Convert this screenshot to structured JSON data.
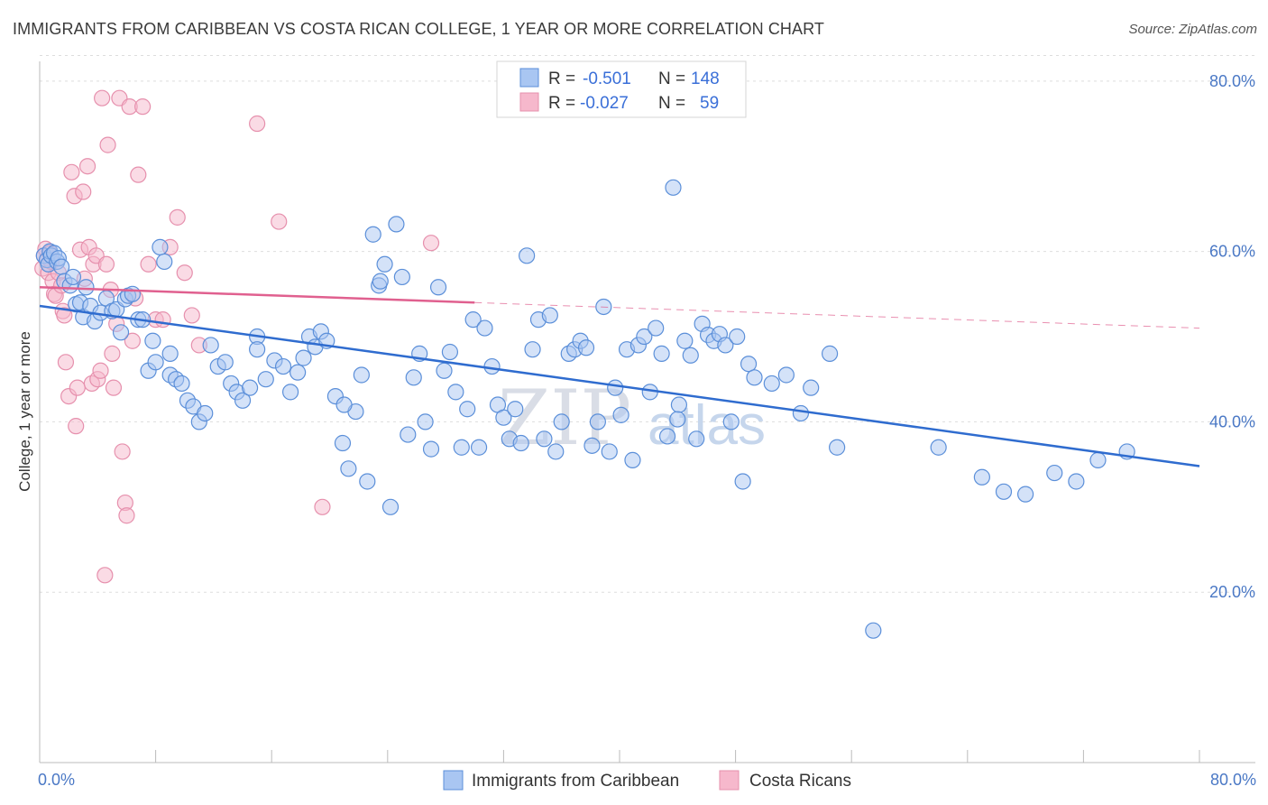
{
  "title": "IMMIGRANTS FROM CARIBBEAN VS COSTA RICAN COLLEGE, 1 YEAR OR MORE CORRELATION CHART",
  "source": "Source: ZipAtlas.com",
  "watermark": {
    "zip": "ZIP",
    "atlas": "atlas"
  },
  "legend_box": [
    {
      "r_label": "R =",
      "r_value": "-0.501",
      "n_label": "N =",
      "n_value": "148"
    },
    {
      "r_label": "R =",
      "r_value": "-0.027",
      "n_label": "N =",
      "n_value": "59"
    }
  ],
  "colors": {
    "blue_fill": "#a9c6f2",
    "blue_stroke": "#5b8fd9",
    "blue_line": "#2f6ccf",
    "pink_fill": "#f6b8cc",
    "pink_stroke": "#e690ad",
    "pink_line": "#e0608f",
    "grid": "#dddddd",
    "tick_text": "#4a78c5"
  },
  "chart_data": {
    "type": "scatter",
    "title": "IMMIGRANTS FROM CARIBBEAN VS COSTA RICAN COLLEGE, 1 YEAR OR MORE CORRELATION CHART",
    "xlabel": "",
    "ylabel": "College, 1 year or more",
    "xlim": [
      0,
      80
    ],
    "ylim": [
      0,
      83
    ],
    "x_tick_labels": [
      "0.0%",
      "80.0%"
    ],
    "y_ticks": [
      20,
      40,
      60,
      80
    ],
    "y_tick_labels": [
      "20.0%",
      "40.0%",
      "60.0%",
      "80.0%"
    ],
    "grid": true,
    "legend_position": "bottom",
    "series": [
      {
        "name": "Immigrants from Caribbean",
        "color": "#a9c6f2",
        "r": -0.501,
        "n": 148,
        "trend": {
          "x": [
            0,
            80
          ],
          "y": [
            53.6,
            34.8
          ]
        },
        "points": [
          [
            0.3,
            59.5
          ],
          [
            0.5,
            59.0
          ],
          [
            0.6,
            58.5
          ],
          [
            0.7,
            60.0
          ],
          [
            0.8,
            59.5
          ],
          [
            1.0,
            59.8
          ],
          [
            1.2,
            58.8
          ],
          [
            1.3,
            59.2
          ],
          [
            1.5,
            58.2
          ],
          [
            1.7,
            56.5
          ],
          [
            2.1,
            56.0
          ],
          [
            2.3,
            57.0
          ],
          [
            2.5,
            53.8
          ],
          [
            2.8,
            54.0
          ],
          [
            3.0,
            52.3
          ],
          [
            3.2,
            55.8
          ],
          [
            3.5,
            53.6
          ],
          [
            3.8,
            51.8
          ],
          [
            4.2,
            52.8
          ],
          [
            4.6,
            54.5
          ],
          [
            5.0,
            53.0
          ],
          [
            5.3,
            53.2
          ],
          [
            5.6,
            50.5
          ],
          [
            5.9,
            54.4
          ],
          [
            6.1,
            54.8
          ],
          [
            6.4,
            55.0
          ],
          [
            6.8,
            52.0
          ],
          [
            7.1,
            52.0
          ],
          [
            7.5,
            46.0
          ],
          [
            7.8,
            49.5
          ],
          [
            8.0,
            47.0
          ],
          [
            8.3,
            60.5
          ],
          [
            8.6,
            58.8
          ],
          [
            9.0,
            45.5
          ],
          [
            9.4,
            45.0
          ],
          [
            9.8,
            44.5
          ],
          [
            10.2,
            42.5
          ],
          [
            10.6,
            41.8
          ],
          [
            11.0,
            40.0
          ],
          [
            11.4,
            41.0
          ],
          [
            11.8,
            49.0
          ],
          [
            12.3,
            46.5
          ],
          [
            12.8,
            47.0
          ],
          [
            13.2,
            44.5
          ],
          [
            13.6,
            43.5
          ],
          [
            14.0,
            42.5
          ],
          [
            14.5,
            44.0
          ],
          [
            15.0,
            50.0
          ],
          [
            15.6,
            45.0
          ],
          [
            16.2,
            47.2
          ],
          [
            16.8,
            46.5
          ],
          [
            17.3,
            43.5
          ],
          [
            17.8,
            45.8
          ],
          [
            18.2,
            47.5
          ],
          [
            18.6,
            50.0
          ],
          [
            19.0,
            48.8
          ],
          [
            19.4,
            50.6
          ],
          [
            19.8,
            49.5
          ],
          [
            20.4,
            43.0
          ],
          [
            20.9,
            37.5
          ],
          [
            21.3,
            34.5
          ],
          [
            21.8,
            41.2
          ],
          [
            22.2,
            45.5
          ],
          [
            22.6,
            33.0
          ],
          [
            23.0,
            62.0
          ],
          [
            23.4,
            56.0
          ],
          [
            23.8,
            58.5
          ],
          [
            24.2,
            30.0
          ],
          [
            24.6,
            63.2
          ],
          [
            25.0,
            57.0
          ],
          [
            25.4,
            38.5
          ],
          [
            25.8,
            45.2
          ],
          [
            26.2,
            48.0
          ],
          [
            26.6,
            40.0
          ],
          [
            27.0,
            36.8
          ],
          [
            27.5,
            55.8
          ],
          [
            27.9,
            46.0
          ],
          [
            28.3,
            48.2
          ],
          [
            28.7,
            43.5
          ],
          [
            29.1,
            37.0
          ],
          [
            29.5,
            41.5
          ],
          [
            29.9,
            52.0
          ],
          [
            30.3,
            37.0
          ],
          [
            30.7,
            51.0
          ],
          [
            31.2,
            46.5
          ],
          [
            31.6,
            42.0
          ],
          [
            32.0,
            40.5
          ],
          [
            32.4,
            38.0
          ],
          [
            32.8,
            41.5
          ],
          [
            33.2,
            37.5
          ],
          [
            33.6,
            59.5
          ],
          [
            34.0,
            48.5
          ],
          [
            34.4,
            52.0
          ],
          [
            34.8,
            38.0
          ],
          [
            35.2,
            52.5
          ],
          [
            35.6,
            36.5
          ],
          [
            36.0,
            40.0
          ],
          [
            36.5,
            48.0
          ],
          [
            36.9,
            48.5
          ],
          [
            37.3,
            49.5
          ],
          [
            37.7,
            48.7
          ],
          [
            38.1,
            37.2
          ],
          [
            38.5,
            40.0
          ],
          [
            38.9,
            53.5
          ],
          [
            39.3,
            36.5
          ],
          [
            39.7,
            44.0
          ],
          [
            40.1,
            40.8
          ],
          [
            40.5,
            48.5
          ],
          [
            40.9,
            35.5
          ],
          [
            41.3,
            49.0
          ],
          [
            41.7,
            50.0
          ],
          [
            42.1,
            43.5
          ],
          [
            42.5,
            51.0
          ],
          [
            42.9,
            48.0
          ],
          [
            43.3,
            38.3
          ],
          [
            43.7,
            67.5
          ],
          [
            44.1,
            42.0
          ],
          [
            44.5,
            49.5
          ],
          [
            44.9,
            47.8
          ],
          [
            45.3,
            38.0
          ],
          [
            45.7,
            51.5
          ],
          [
            46.1,
            50.2
          ],
          [
            46.5,
            49.5
          ],
          [
            46.9,
            50.3
          ],
          [
            47.3,
            49.0
          ],
          [
            47.7,
            40.0
          ],
          [
            48.1,
            50.0
          ],
          [
            48.5,
            33.0
          ],
          [
            48.9,
            46.8
          ],
          [
            49.3,
            45.2
          ],
          [
            50.5,
            44.5
          ],
          [
            51.5,
            45.5
          ],
          [
            52.5,
            41.0
          ],
          [
            53.2,
            44.0
          ],
          [
            54.5,
            48.0
          ],
          [
            55.0,
            37.0
          ],
          [
            57.5,
            15.5
          ],
          [
            62.0,
            37.0
          ],
          [
            65.0,
            33.5
          ],
          [
            66.5,
            31.8
          ],
          [
            68.0,
            31.5
          ],
          [
            70.0,
            34.0
          ],
          [
            71.5,
            33.0
          ],
          [
            73.0,
            35.5
          ],
          [
            75.0,
            36.5
          ],
          [
            44.0,
            40.3
          ],
          [
            23.5,
            56.5
          ],
          [
            9.0,
            48.0
          ],
          [
            15.0,
            48.5
          ],
          [
            21.0,
            42.0
          ]
        ]
      },
      {
        "name": "Costa Ricans",
        "color": "#f6b8cc",
        "r": -0.027,
        "n": 59,
        "trend": {
          "x": [
            0,
            30
          ],
          "y": [
            55.8,
            54.0
          ]
        },
        "points": [
          [
            0.2,
            58.0
          ],
          [
            0.3,
            59.5
          ],
          [
            0.4,
            60.3
          ],
          [
            0.5,
            59.0
          ],
          [
            0.6,
            57.5
          ],
          [
            0.7,
            59.8
          ],
          [
            0.8,
            58.8
          ],
          [
            0.9,
            56.5
          ],
          [
            1.0,
            55.0
          ],
          [
            1.1,
            54.8
          ],
          [
            1.3,
            57.5
          ],
          [
            1.5,
            56.0
          ],
          [
            1.6,
            53.0
          ],
          [
            1.7,
            52.5
          ],
          [
            1.8,
            47.0
          ],
          [
            2.0,
            43.0
          ],
          [
            2.2,
            69.3
          ],
          [
            2.4,
            66.5
          ],
          [
            2.5,
            39.5
          ],
          [
            2.6,
            44.0
          ],
          [
            2.8,
            60.2
          ],
          [
            3.0,
            67.0
          ],
          [
            3.1,
            56.8
          ],
          [
            3.3,
            70.0
          ],
          [
            3.4,
            60.5
          ],
          [
            3.6,
            44.5
          ],
          [
            3.7,
            58.5
          ],
          [
            3.9,
            59.5
          ],
          [
            4.0,
            45.0
          ],
          [
            4.2,
            46.0
          ],
          [
            4.3,
            78.0
          ],
          [
            4.5,
            22.0
          ],
          [
            4.6,
            58.5
          ],
          [
            4.7,
            72.5
          ],
          [
            4.9,
            55.5
          ],
          [
            5.0,
            48.0
          ],
          [
            5.1,
            44.0
          ],
          [
            5.3,
            51.5
          ],
          [
            5.5,
            78.0
          ],
          [
            5.7,
            36.5
          ],
          [
            5.9,
            30.5
          ],
          [
            6.0,
            29.0
          ],
          [
            6.2,
            77.0
          ],
          [
            6.4,
            49.5
          ],
          [
            6.6,
            54.5
          ],
          [
            6.8,
            69.0
          ],
          [
            7.1,
            77.0
          ],
          [
            7.5,
            58.5
          ],
          [
            8.0,
            52.0
          ],
          [
            8.5,
            52.0
          ],
          [
            9.0,
            60.5
          ],
          [
            9.5,
            64.0
          ],
          [
            10.0,
            57.5
          ],
          [
            10.5,
            52.5
          ],
          [
            11.0,
            49.0
          ],
          [
            15.0,
            75.0
          ],
          [
            16.5,
            63.5
          ],
          [
            19.5,
            30.0
          ],
          [
            27.0,
            61.0
          ]
        ]
      }
    ]
  }
}
